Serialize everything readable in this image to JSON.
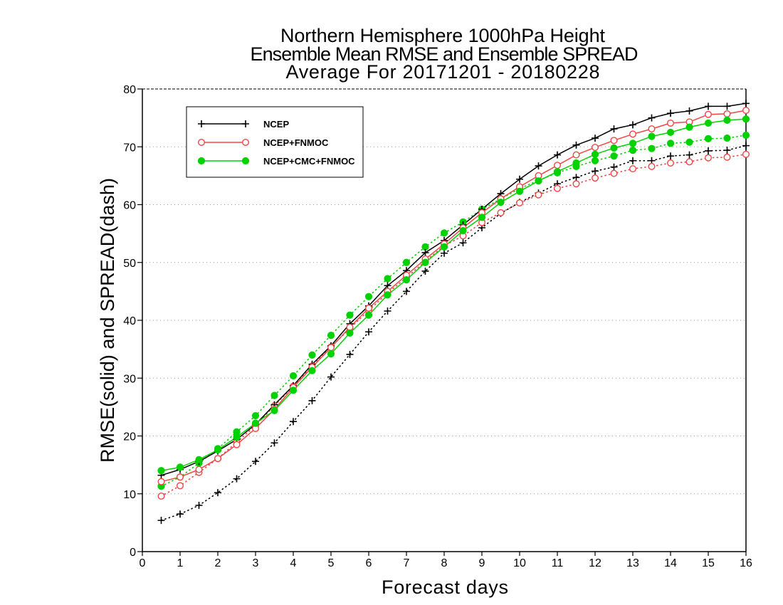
{
  "chart_data": {
    "type": "line",
    "title": [
      "Northern Hemisphere 1000hPa Height",
      "Ensemble Mean RMSE and Ensemble SPREAD",
      "Average For 20171201 - 20180228"
    ],
    "xlabel": "Forecast days",
    "ylabel": "RMSE(solid) and SPREAD(dash)",
    "xlim": [
      0,
      16
    ],
    "ylim": [
      0,
      80
    ],
    "xticks": [
      0,
      1,
      2,
      3,
      4,
      5,
      6,
      7,
      8,
      9,
      10,
      11,
      12,
      13,
      14,
      15,
      16
    ],
    "yticks": [
      0,
      10,
      20,
      30,
      40,
      50,
      60,
      70,
      80
    ],
    "grid": true,
    "legend_position": "top-left",
    "x": [
      0.5,
      1,
      1.5,
      2,
      2.5,
      3,
      3.5,
      4,
      4.5,
      5,
      5.5,
      6,
      6.5,
      7,
      7.5,
      8,
      8.5,
      9,
      9.5,
      10,
      10.5,
      11,
      11.5,
      12,
      12.5,
      13,
      13.5,
      14,
      14.5,
      15,
      15.5,
      16
    ],
    "series": [
      {
        "name": "NCEP",
        "color": "#000000",
        "marker": "plus",
        "rmse": [
          13.2,
          14.2,
          15.6,
          17.4,
          19.4,
          22.0,
          25.4,
          28.7,
          32.4,
          35.6,
          39.4,
          42.5,
          46.0,
          48.6,
          51.7,
          53.8,
          56.5,
          59.2,
          61.9,
          64.4,
          66.7,
          68.6,
          70.3,
          71.5,
          73.1,
          73.8,
          75.0,
          75.8,
          76.2,
          77.0,
          77.0,
          77.5
        ],
        "spread": [
          5.4,
          6.5,
          8.0,
          10.2,
          12.6,
          15.6,
          18.8,
          22.5,
          26.1,
          30.2,
          34.1,
          38.0,
          41.6,
          45.0,
          48.5,
          51.6,
          53.4,
          56.0,
          58.5,
          60.4,
          62.0,
          63.6,
          64.7,
          65.8,
          66.5,
          67.6,
          67.6,
          68.4,
          68.6,
          69.3,
          69.4,
          70.2
        ]
      },
      {
        "name": "NCEP+FNMOC",
        "color": "#f04646",
        "marker": "open-circle",
        "rmse": [
          12.1,
          12.9,
          14.2,
          16.1,
          18.5,
          21.3,
          24.6,
          28.4,
          31.9,
          35.3,
          38.8,
          42.1,
          45.0,
          47.8,
          50.6,
          53.2,
          56.0,
          58.6,
          61.0,
          63.1,
          65.0,
          66.8,
          68.6,
          69.9,
          71.1,
          72.2,
          73.1,
          74.1,
          74.3,
          75.6,
          75.7,
          76.3
        ],
        "spread": [
          9.6,
          11.4,
          13.7,
          16.1,
          18.9,
          21.8,
          25.2,
          28.6,
          32.1,
          35.4,
          38.6,
          41.7,
          44.7,
          47.4,
          50.2,
          52.9,
          54.6,
          56.9,
          58.6,
          60.3,
          61.7,
          62.8,
          63.6,
          64.6,
          65.4,
          66.2,
          66.6,
          67.2,
          67.4,
          68.1,
          68.2,
          68.7
        ]
      },
      {
        "name": "NCEP+CMC+FNMOC",
        "color": "#00d200",
        "marker": "filled-circle",
        "rmse": [
          14.0,
          14.6,
          15.9,
          17.6,
          19.8,
          22.2,
          24.4,
          27.9,
          31.3,
          34.2,
          37.8,
          40.9,
          44.4,
          47.0,
          50.0,
          52.7,
          55.5,
          57.8,
          60.4,
          62.3,
          64.1,
          65.7,
          67.2,
          68.7,
          69.8,
          70.6,
          71.8,
          72.5,
          73.4,
          74.1,
          74.6,
          74.8
        ],
        "spread": [
          11.3,
          12.9,
          15.3,
          17.8,
          20.7,
          23.5,
          27.0,
          30.4,
          34.0,
          37.4,
          40.9,
          44.1,
          47.2,
          50.0,
          52.7,
          55.1,
          57.0,
          59.2,
          61.0,
          62.8,
          64.2,
          65.5,
          66.6,
          67.6,
          68.4,
          69.4,
          69.7,
          70.6,
          70.8,
          71.4,
          71.5,
          72.0
        ]
      }
    ]
  }
}
